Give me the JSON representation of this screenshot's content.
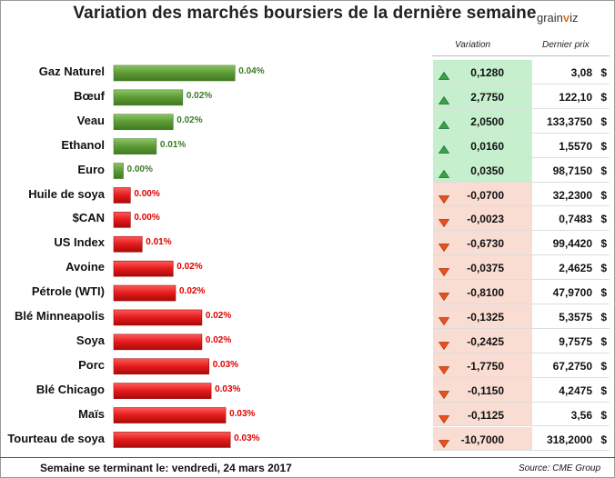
{
  "title": "Variation des marchés boursiers de la dernière semaine",
  "logo": {
    "prefix": "grain",
    "accent": "v",
    "suffix": "iz"
  },
  "headers": {
    "variation": "Variation",
    "price": "Dernier prix"
  },
  "currency": "$",
  "footer": {
    "left": "Semaine se terminant le: vendredi, 24 mars 2017",
    "right": "Source: CME Group"
  },
  "colors": {
    "up_bar": "#5c9a34",
    "up_text": "#3c7a24",
    "up_bg": "#c6efce",
    "down_bar": "#e31b1b",
    "down_text": "#e00000",
    "down_bg": "#f9dcd2"
  },
  "chart_data": {
    "type": "bar",
    "orientation": "horizontal",
    "categories": [
      "Gaz Naturel",
      "Bœuf",
      "Veau",
      "Ethanol",
      "Euro",
      "Huile de soya",
      "$CAN",
      "US Index",
      "Avoine",
      "Pétrole (WTI)",
      "Blé Minneapolis",
      "Soya",
      "Porc",
      "Blé Chicago",
      "Maïs",
      "Tourteau de soya"
    ],
    "values": [
      0.04,
      0.02,
      0.02,
      0.01,
      0.0,
      0.0,
      0.0,
      0.01,
      0.02,
      0.02,
      0.02,
      0.02,
      0.03,
      0.03,
      0.03,
      0.03
    ],
    "labels": [
      "0.04%",
      "0.02%",
      "0.02%",
      "0.01%",
      "0.00%",
      "0.00%",
      "0.00%",
      "0.01%",
      "0.02%",
      "0.02%",
      "0.02%",
      "0.02%",
      "0.03%",
      "0.03%",
      "0.03%",
      "0.03%"
    ],
    "bar_fraction": [
      0.392,
      0.223,
      0.192,
      0.138,
      0.031,
      0.054,
      0.054,
      0.092,
      0.192,
      0.2,
      0.285,
      0.285,
      0.308,
      0.315,
      0.362,
      0.377
    ],
    "direction": [
      "up",
      "up",
      "up",
      "up",
      "up",
      "down",
      "down",
      "down",
      "down",
      "down",
      "down",
      "down",
      "down",
      "down",
      "down",
      "down"
    ]
  },
  "table": {
    "variation": [
      "0,1280",
      "2,7750",
      "2,0500",
      "0,0160",
      "0,0350",
      "-0,0700",
      "-0,0023",
      "-0,6730",
      "-0,0375",
      "-0,8100",
      "-0,1325",
      "-0,2425",
      "-1,7750",
      "-0,1150",
      "-0,1125",
      "-10,7000"
    ],
    "price": [
      "3,08",
      "122,10",
      "133,3750",
      "1,5570",
      "98,7150",
      "32,2300",
      "0,7483",
      "99,4420",
      "2,4625",
      "47,9700",
      "5,3575",
      "9,7575",
      "67,2750",
      "4,2475",
      "3,56",
      "318,2000"
    ]
  }
}
